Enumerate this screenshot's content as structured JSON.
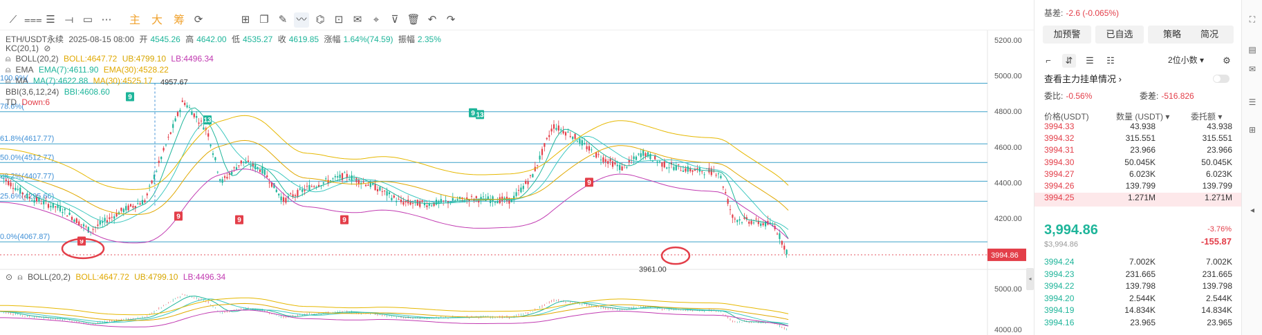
{
  "toolbar": {
    "tools": [
      {
        "name": "trend-line-icon",
        "glyph": "⟋"
      },
      {
        "name": "horizontal-lines-icon",
        "glyph": "⩶"
      },
      {
        "name": "parallel-lines-icon",
        "glyph": "☰"
      },
      {
        "name": "ray-line-icon",
        "glyph": "⟞"
      },
      {
        "name": "rectangle-icon",
        "glyph": "▭"
      },
      {
        "name": "more-icon",
        "glyph": "⋯"
      }
    ],
    "cn_tools": [
      "主",
      "大",
      "筹"
    ],
    "tools2": [
      {
        "name": "auto-chart-icon",
        "glyph": "⟳"
      },
      {
        "name": "measure-icon",
        "glyph": "⊞"
      },
      {
        "name": "copy-icon",
        "glyph": "❐"
      },
      {
        "name": "pencil-icon",
        "glyph": "✎"
      },
      {
        "name": "brush-icon",
        "glyph": "〰"
      },
      {
        "name": "pattern-icon",
        "glyph": "⌬"
      },
      {
        "name": "lock-icon",
        "glyph": "⊡"
      },
      {
        "name": "note-icon",
        "glyph": "✉"
      },
      {
        "name": "magnet-icon",
        "glyph": "⌖"
      },
      {
        "name": "filter-icon",
        "glyph": "⊽"
      },
      {
        "name": "trash-icon",
        "glyph": "🗑"
      },
      {
        "name": "undo-icon",
        "glyph": "↶"
      },
      {
        "name": "redo-icon",
        "glyph": "↷"
      }
    ]
  },
  "main": {
    "symbol": "ETH/USDT永续",
    "date": "2025-08-15 08:00",
    "open_label": "开",
    "open": "4545.26",
    "high_label": "高",
    "high": "4642.00",
    "low_label": "低",
    "low": "4535.27",
    "close_label": "收",
    "close": "4619.85",
    "chg_label": "涨幅",
    "chg": "1.64%(74.59)",
    "amp_label": "振幅",
    "amp": "2.35%",
    "kc": "KC(20,1)",
    "boll": "BOLL(20,2)",
    "boll_v": "BOLL:4647.72",
    "boll_ub": "UB:4799.10",
    "boll_lb": "LB:4496.34",
    "ema_name": "EMA",
    "ema7": "EMA(7):4611.90",
    "ema30": "EMA(30):4528.22",
    "ma_name": "MA",
    "ma7": "MA(7):4622.88",
    "ma30": "MA(30):4525.17",
    "bbi": "BBI(3,6,12,24)",
    "bbi_v": "BBI:4608.60",
    "td": "TD",
    "td_v": "Down:6",
    "fib": [
      "100.0%(",
      "78.6%(",
      "61.8%(4617.77)",
      "50.0%(4512.77)",
      "38.2%(4407.77)",
      "25.6%(4295.66)",
      "0.0%(4067.87)"
    ],
    "price_axis": [
      "5200.00",
      "5000.00",
      "4800.00",
      "4600.00",
      "4400.00",
      "4200.00"
    ],
    "current_price": "3994.86",
    "high_note": "4957.67",
    "low_note": "3961.00",
    "td_marks": [
      "9",
      "9",
      "13",
      "9",
      "9",
      "9",
      "9",
      "13",
      "9"
    ]
  },
  "sub": {
    "boll": "BOLL(20,2)",
    "boll_v": "BOLL:4647.72",
    "boll_ub": "UB:4799.10",
    "boll_lb": "LB:4496.34",
    "axis": [
      "5000.00",
      "4000.00"
    ]
  },
  "panel": {
    "basis_label": "基差:",
    "basis_value": "-2.6 (-0.065%)",
    "buttons": [
      "加预警",
      "已自选",
      "策略",
      "简况"
    ],
    "decimals": "2位小数",
    "view_main": "查看主力挂单情况",
    "ratio_label": "委比:",
    "ratio_value": "-0.56%",
    "diff_label": "委差:",
    "diff_value": "-516.826",
    "col_price": "价格(USDT)",
    "col_qty": "数量 (USDT)",
    "col_total": "委托额",
    "asks": [
      {
        "p": "3994.33",
        "q": "43.938",
        "t": "43.938"
      },
      {
        "p": "3994.32",
        "q": "315.551",
        "t": "315.551"
      },
      {
        "p": "3994.31",
        "q": "23.966",
        "t": "23.966"
      },
      {
        "p": "3994.30",
        "q": "50.045K",
        "t": "50.045K"
      },
      {
        "p": "3994.27",
        "q": "6.023K",
        "t": "6.023K"
      },
      {
        "p": "3994.26",
        "q": "139.799",
        "t": "139.799"
      },
      {
        "p": "3994.25",
        "q": "1.271M",
        "t": "1.271M"
      }
    ],
    "last_price": "3,994.86",
    "last_sub": "$3,994.86",
    "last_pct": "-3.76%",
    "last_chg": "-155.87",
    "bids": [
      {
        "p": "3994.24",
        "q": "7.002K",
        "t": "7.002K"
      },
      {
        "p": "3994.23",
        "q": "231.665",
        "t": "231.665"
      },
      {
        "p": "3994.22",
        "q": "139.798",
        "t": "139.798"
      },
      {
        "p": "3994.20",
        "q": "2.544K",
        "t": "2.544K"
      },
      {
        "p": "3994.19",
        "q": "14.834K",
        "t": "14.834K"
      },
      {
        "p": "3994.16",
        "q": "23.965",
        "t": "23.965"
      }
    ]
  },
  "colors": {
    "up": "#1eb59a",
    "down": "#e33e49",
    "fib": "#3aa0c8",
    "boll": "#e0a800",
    "lb": "#c13ab1",
    "ema": "#1eb59a"
  }
}
